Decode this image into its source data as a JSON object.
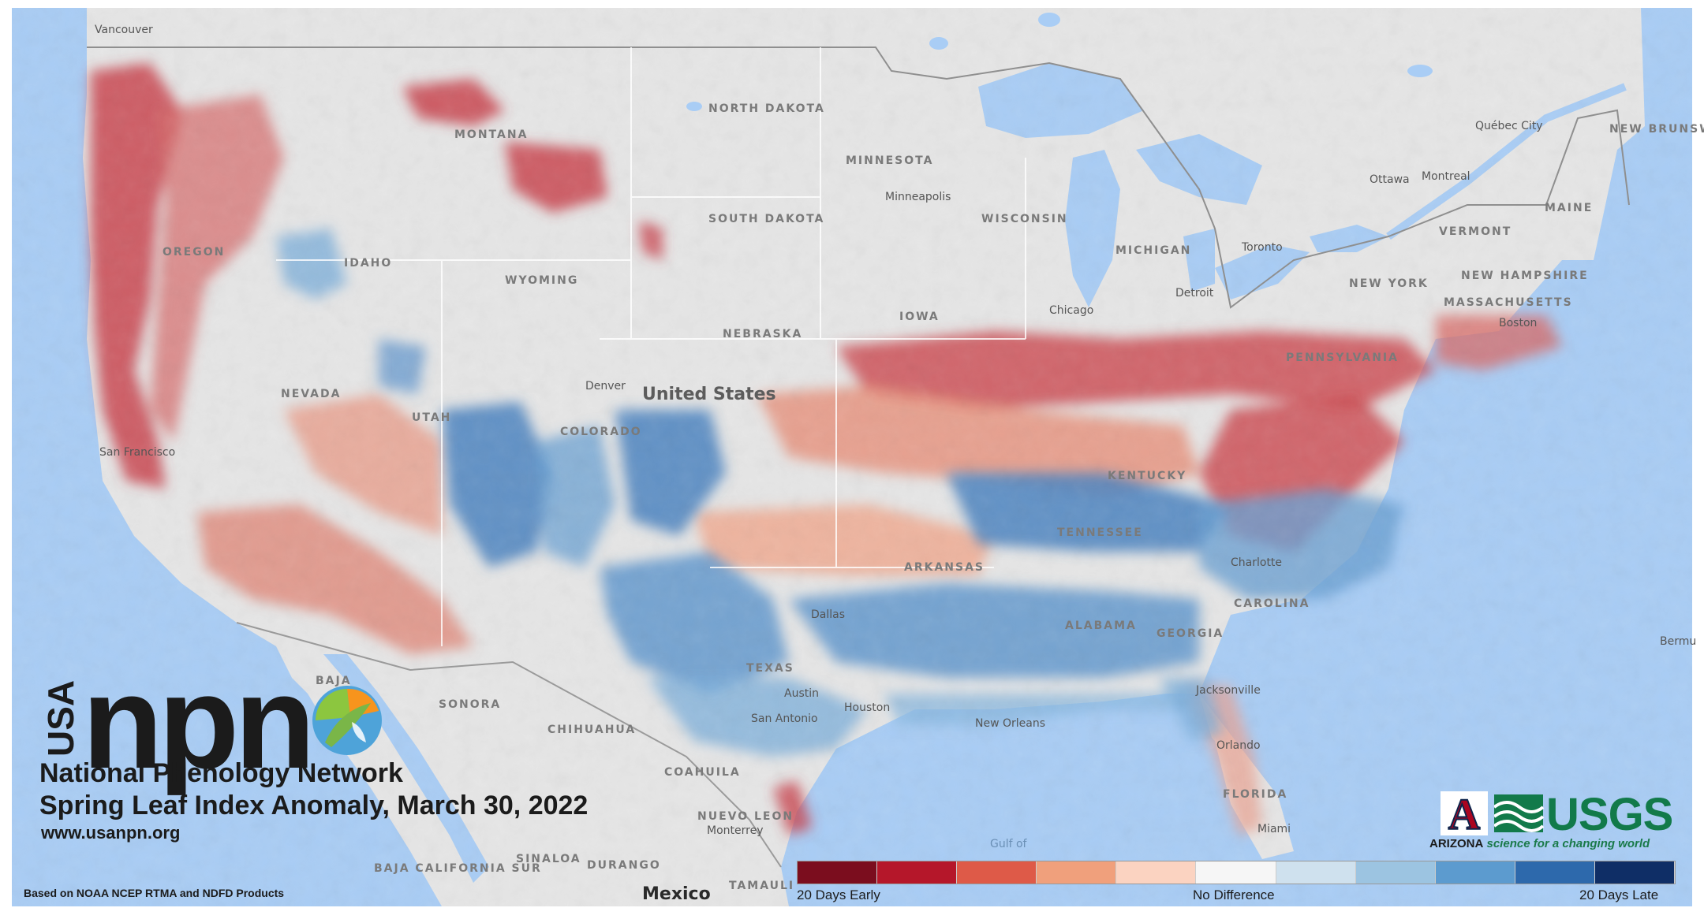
{
  "map": {
    "title": "Spring Leaf Index Anomaly, March 30, 2022",
    "country_label": "United States",
    "mexico_label": "Mexico",
    "states": [
      "NORTH DAKOTA",
      "MINNESOTA",
      "SOUTH DAKOTA",
      "WISCONSIN",
      "MICHIGAN",
      "MONTANA",
      "IDAHO",
      "WYOMING",
      "NEBRASKA",
      "IOWA",
      "OREGON",
      "UTAH",
      "COLORADO",
      "NEVADA",
      "NEW YORK",
      "PENNSYLVANIA",
      "VERMONT",
      "MAINE",
      "NEW HAMPSHIRE",
      "MASSACHUSETTS",
      "NEW BRUNSWICK",
      "KENTUCKY",
      "TENNESSEE",
      "ARKANSAS",
      "ALABAMA",
      "GEORGIA",
      "CAROLINA",
      "TEXAS",
      "FLORIDA",
      "SONORA",
      "CHIHUAHUA",
      "COAHUILA",
      "NUEVO LEON",
      "SINALOA",
      "DURANGO",
      "BAJA CALIFORNIA SUR",
      "BAJA",
      "TAMAULI"
    ],
    "cities": [
      "Vancouver",
      "Minneapolis",
      "Ottawa",
      "Montreal",
      "Québec City",
      "Toronto",
      "Detroit",
      "Chicago",
      "Denver",
      "San Francisco",
      "Dallas",
      "Austin",
      "Houston",
      "San Antonio",
      "Jacksonville",
      "Orlando",
      "Miami",
      "Monterrey",
      "Charlotte",
      "Boston",
      "New Orleans",
      "Bermu",
      "Gulf of"
    ]
  },
  "branding": {
    "usa": "USA",
    "npn": "npn",
    "organization": "National Phenology Network",
    "website": "www.usanpn.org",
    "source_note": "Based on NOAA NCEP RTMA and NDFD Products",
    "arizona_letter": "A",
    "arizona_name": "ARIZONA",
    "usgs_name": "USGS",
    "usgs_tagline": "science for a changing world"
  },
  "legend": {
    "left_label": "20 Days Early",
    "center_label": "No Difference",
    "right_label": "20 Days Late",
    "colors": [
      "#7b0d1e",
      "#b5172a",
      "#de5a48",
      "#f0a07c",
      "#fbd3c1",
      "#f6f6f6",
      "#cfe1ee",
      "#9cc4e1",
      "#5c9bcf",
      "#2d69ac",
      "#0f2e66"
    ]
  },
  "colors": {
    "water": "#a9cdf5",
    "land": "#e7e7e7",
    "early": "#c9404a",
    "late": "#4a83c0"
  }
}
